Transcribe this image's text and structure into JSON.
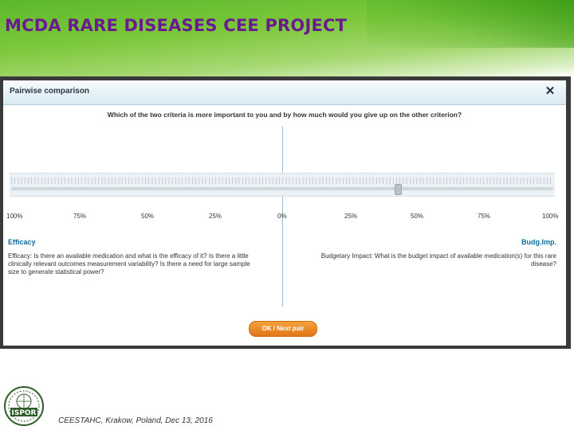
{
  "slide": {
    "title": "MCDA RARE DISEASES CEE PROJECT",
    "footer": "CEESTAHC, Krakow, Poland, Dec 13, 2016"
  },
  "dialog": {
    "title": "Pairwise comparison",
    "close_glyph": "✕",
    "question": "Which of the two criteria is more important to you and by how much would you give up on the other criterion?",
    "scale_labels": [
      "100%",
      "75%",
      "50%",
      "25%",
      "0%",
      "25%",
      "50%",
      "75%",
      "100%"
    ],
    "slider_position_percent_right": 43,
    "left_criterion": {
      "name": "Efficacy",
      "description": "Efficacy: Is there an available medication and what is the efficacy of it? Is there a little clinically relevant outcomes measurement variability? Is there a need for large sample size to generate statistical power?"
    },
    "right_criterion": {
      "name": "Budg.Imp.",
      "description": "Budgetary Impact: What is the budget impact of available medication(s) for this rare disease?"
    },
    "ok_label": "OK / Next pair"
  },
  "colors": {
    "title_purple": "#6b1a91",
    "header_green": "#5cb82a",
    "criterion_blue": "#0f6e9e",
    "button_orange": "#f08a2a"
  },
  "logo": {
    "text": "ISPOR"
  }
}
